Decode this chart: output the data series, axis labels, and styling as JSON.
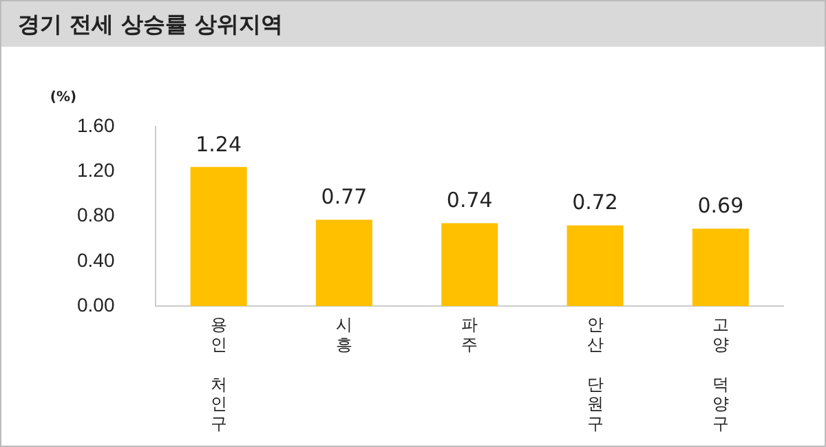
{
  "chart_data": {
    "type": "bar",
    "title": "경기 전세 상승률 상위지역",
    "ylabel": "(%)",
    "categories": [
      "용인 처인구",
      "시흥",
      "파주",
      "안산 단원구",
      "고양 덕양구"
    ],
    "values": [
      1.24,
      0.77,
      0.74,
      0.72,
      0.69
    ],
    "color": "#ffc000",
    "ylim": [
      0,
      1.6
    ],
    "yticks": [
      {
        "value": 0,
        "label": "0.00"
      },
      {
        "value": 0.4,
        "label": "0.40"
      },
      {
        "value": 0.8,
        "label": "0.80"
      },
      {
        "value": 1.2,
        "label": "1.20"
      },
      {
        "value": 1.6,
        "label": "1.60"
      }
    ],
    "grid": false,
    "legend": false,
    "data_labels": true
  }
}
